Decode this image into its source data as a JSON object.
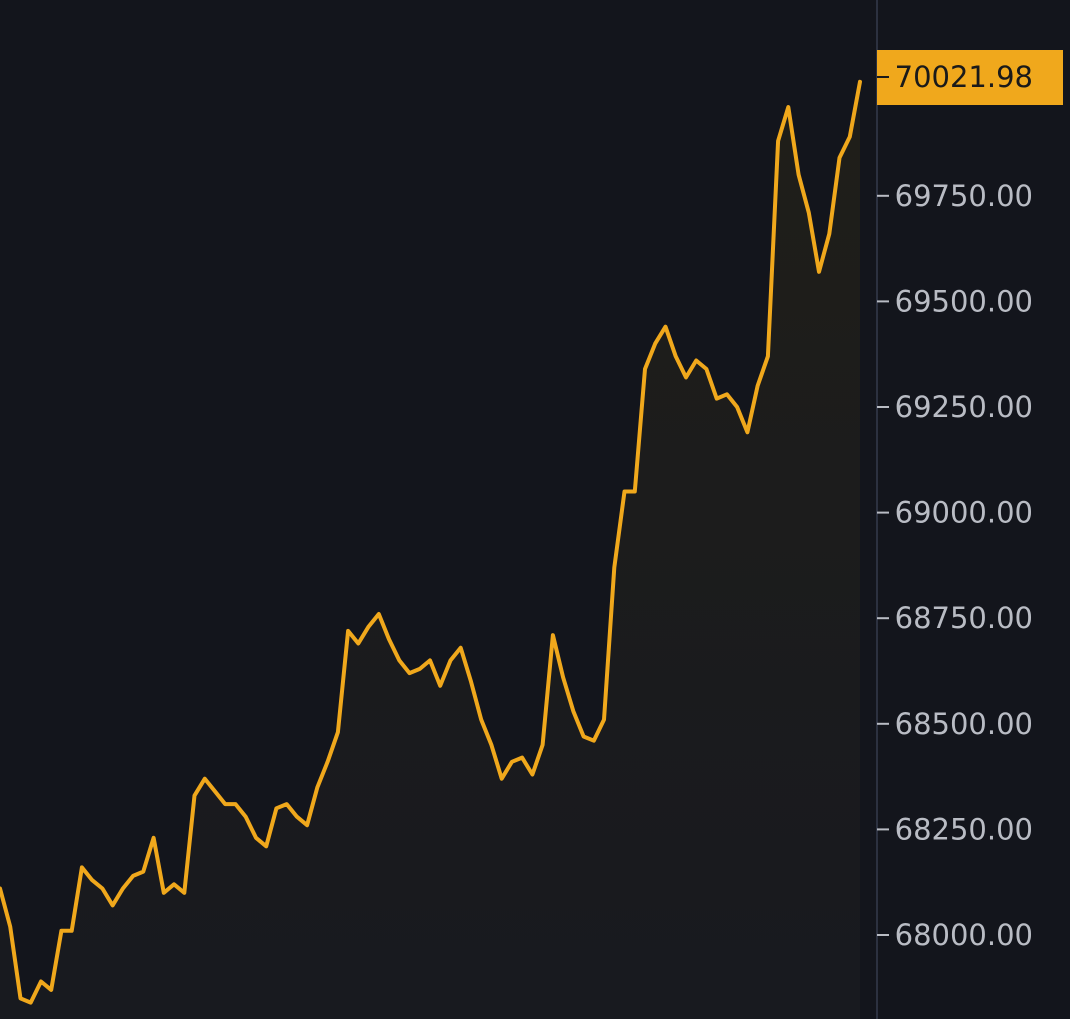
{
  "chart_data": {
    "type": "line",
    "title": "",
    "xlabel": "",
    "ylabel": "",
    "ylim": [
      67870,
      70100
    ],
    "y_ticks": [
      "69750.00",
      "69500.00",
      "69250.00",
      "69000.00",
      "68750.00",
      "68500.00",
      "68250.00",
      "68000.00"
    ],
    "last_price": {
      "label": "70021.98",
      "value": 70021.98
    },
    "colors": {
      "background": "#13151c",
      "line": "#f0a81c",
      "price_badge": "#f0a81c",
      "axis_line": "#2c3140",
      "tick_text": "#b9bcc4"
    },
    "grid": false,
    "series": [
      {
        "values": [
          68110,
          68020,
          67850,
          67840,
          67890,
          67870,
          68010,
          68010,
          68160,
          68130,
          68110,
          68070,
          68110,
          68140,
          68150,
          68230,
          68100,
          68120,
          68100,
          68330,
          68370,
          68340,
          68310,
          68310,
          68280,
          68230,
          68210,
          68300,
          68310,
          68280,
          68260,
          68350,
          68410,
          68480,
          68720,
          68690,
          68730,
          68760,
          68700,
          68650,
          68620,
          68630,
          68650,
          68590,
          68650,
          68680,
          68600,
          68510,
          68450,
          68370,
          68410,
          68420,
          68380,
          68450,
          68710,
          68610,
          68530,
          68470,
          68460,
          68510,
          68870,
          69050,
          69050,
          69340,
          69400,
          69440,
          69370,
          69320,
          69360,
          69340,
          69270,
          69280,
          69250,
          69190,
          69300,
          69370,
          69880,
          69960,
          69800,
          69710,
          69570,
          69660,
          69840,
          69890,
          70020
        ]
      }
    ]
  }
}
